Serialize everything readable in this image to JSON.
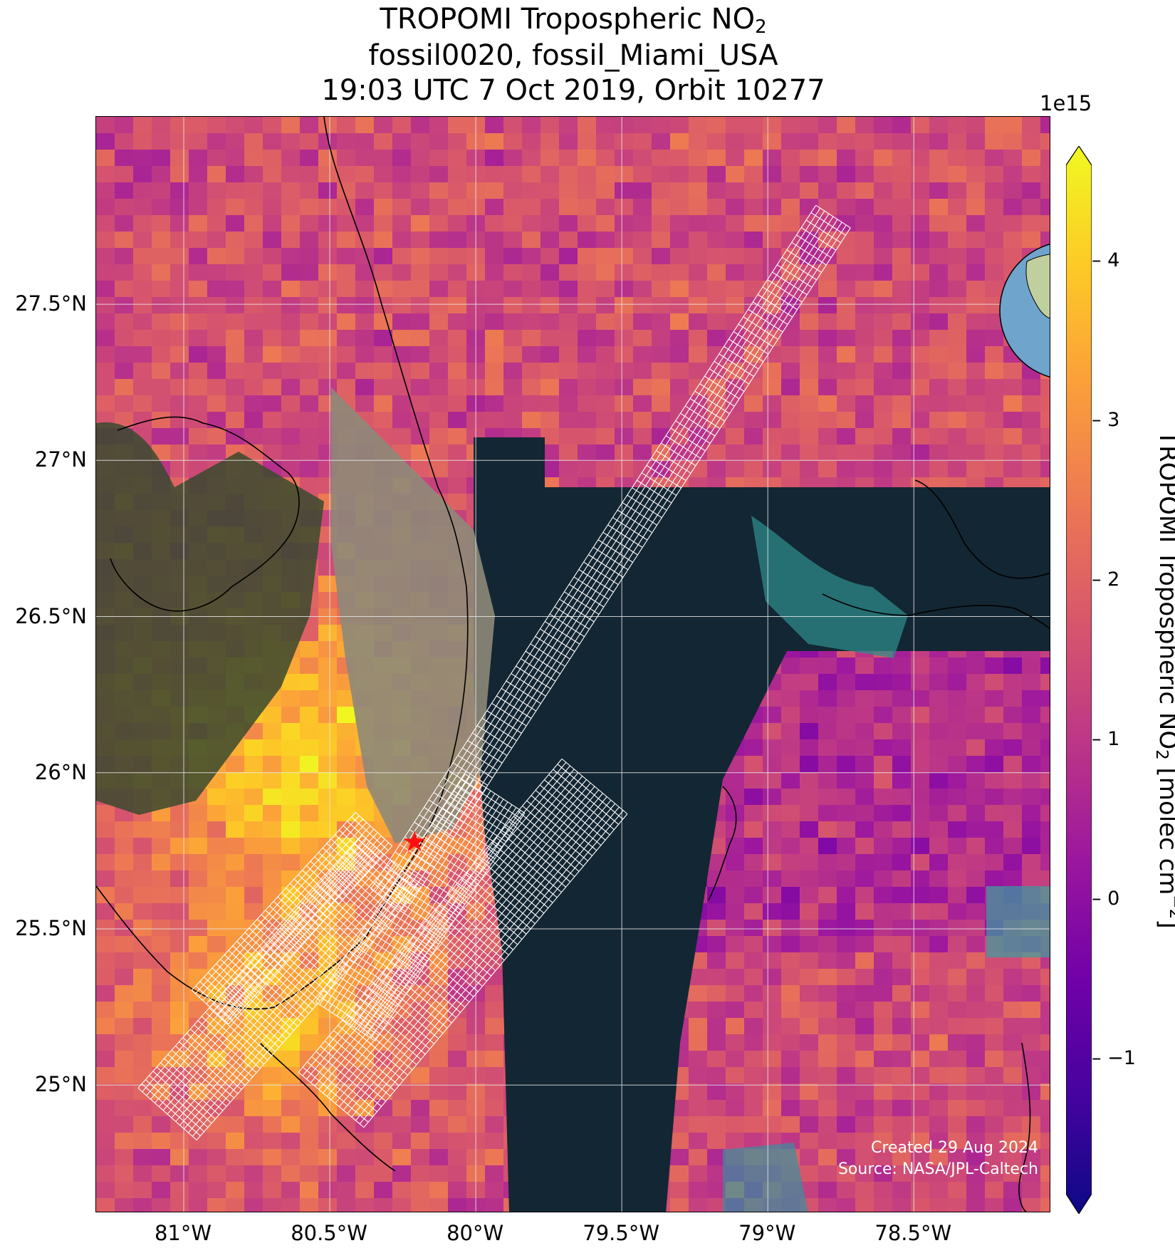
{
  "title": {
    "line1_main": "TROPOMI Tropospheric NO",
    "line1_sub": "2",
    "line2": "fossil0020, fossil_Miami_USA",
    "line3": "19:03 UTC 7 Oct 2019, Orbit 10277"
  },
  "axes": {
    "lat_ticks": [
      "27.5°N",
      "27°N",
      "26.5°N",
      "26°N",
      "25.5°N",
      "25°N"
    ],
    "lon_ticks": [
      "81°W",
      "80.5°W",
      "80°W",
      "79.5°W",
      "79°W",
      "78.5°W"
    ],
    "lat_range": [
      24.59,
      28.1
    ],
    "lon_range": [
      -81.3,
      -78.03
    ]
  },
  "target": {
    "name": "fossil_Miami_USA",
    "lat": 25.78,
    "lon": -80.21,
    "marker": "red-star"
  },
  "credits": {
    "created": "Created 29 Aug 2024",
    "source": "Source: NASA/JPL-Caltech"
  },
  "colorbar": {
    "label_main": "TROPOMI Tropospheric NO",
    "label_sub": "2",
    "label_units_a": " [molec cm",
    "label_units_sup": "−2",
    "label_units_b": "]",
    "exponent": "1e15",
    "colormap": "plasma",
    "range": [
      -1.85,
      4.6
    ],
    "ticks": [
      "4",
      "3",
      "2",
      "1",
      "0",
      "−1"
    ],
    "colors": [
      "#0d0887",
      "#46039f",
      "#7201a8",
      "#9c179e",
      "#bd3786",
      "#d8576b",
      "#ed7953",
      "#fb9f3a",
      "#fdca26",
      "#f0f921"
    ]
  },
  "globe": {
    "ocean": "#6fa4cc",
    "land": "#bfcf9e",
    "marker": "red-star"
  },
  "colors": {
    "no_data_ocean": "#132633",
    "gridline": "#e8e8e8",
    "swath_outline": "#ffffff"
  }
}
